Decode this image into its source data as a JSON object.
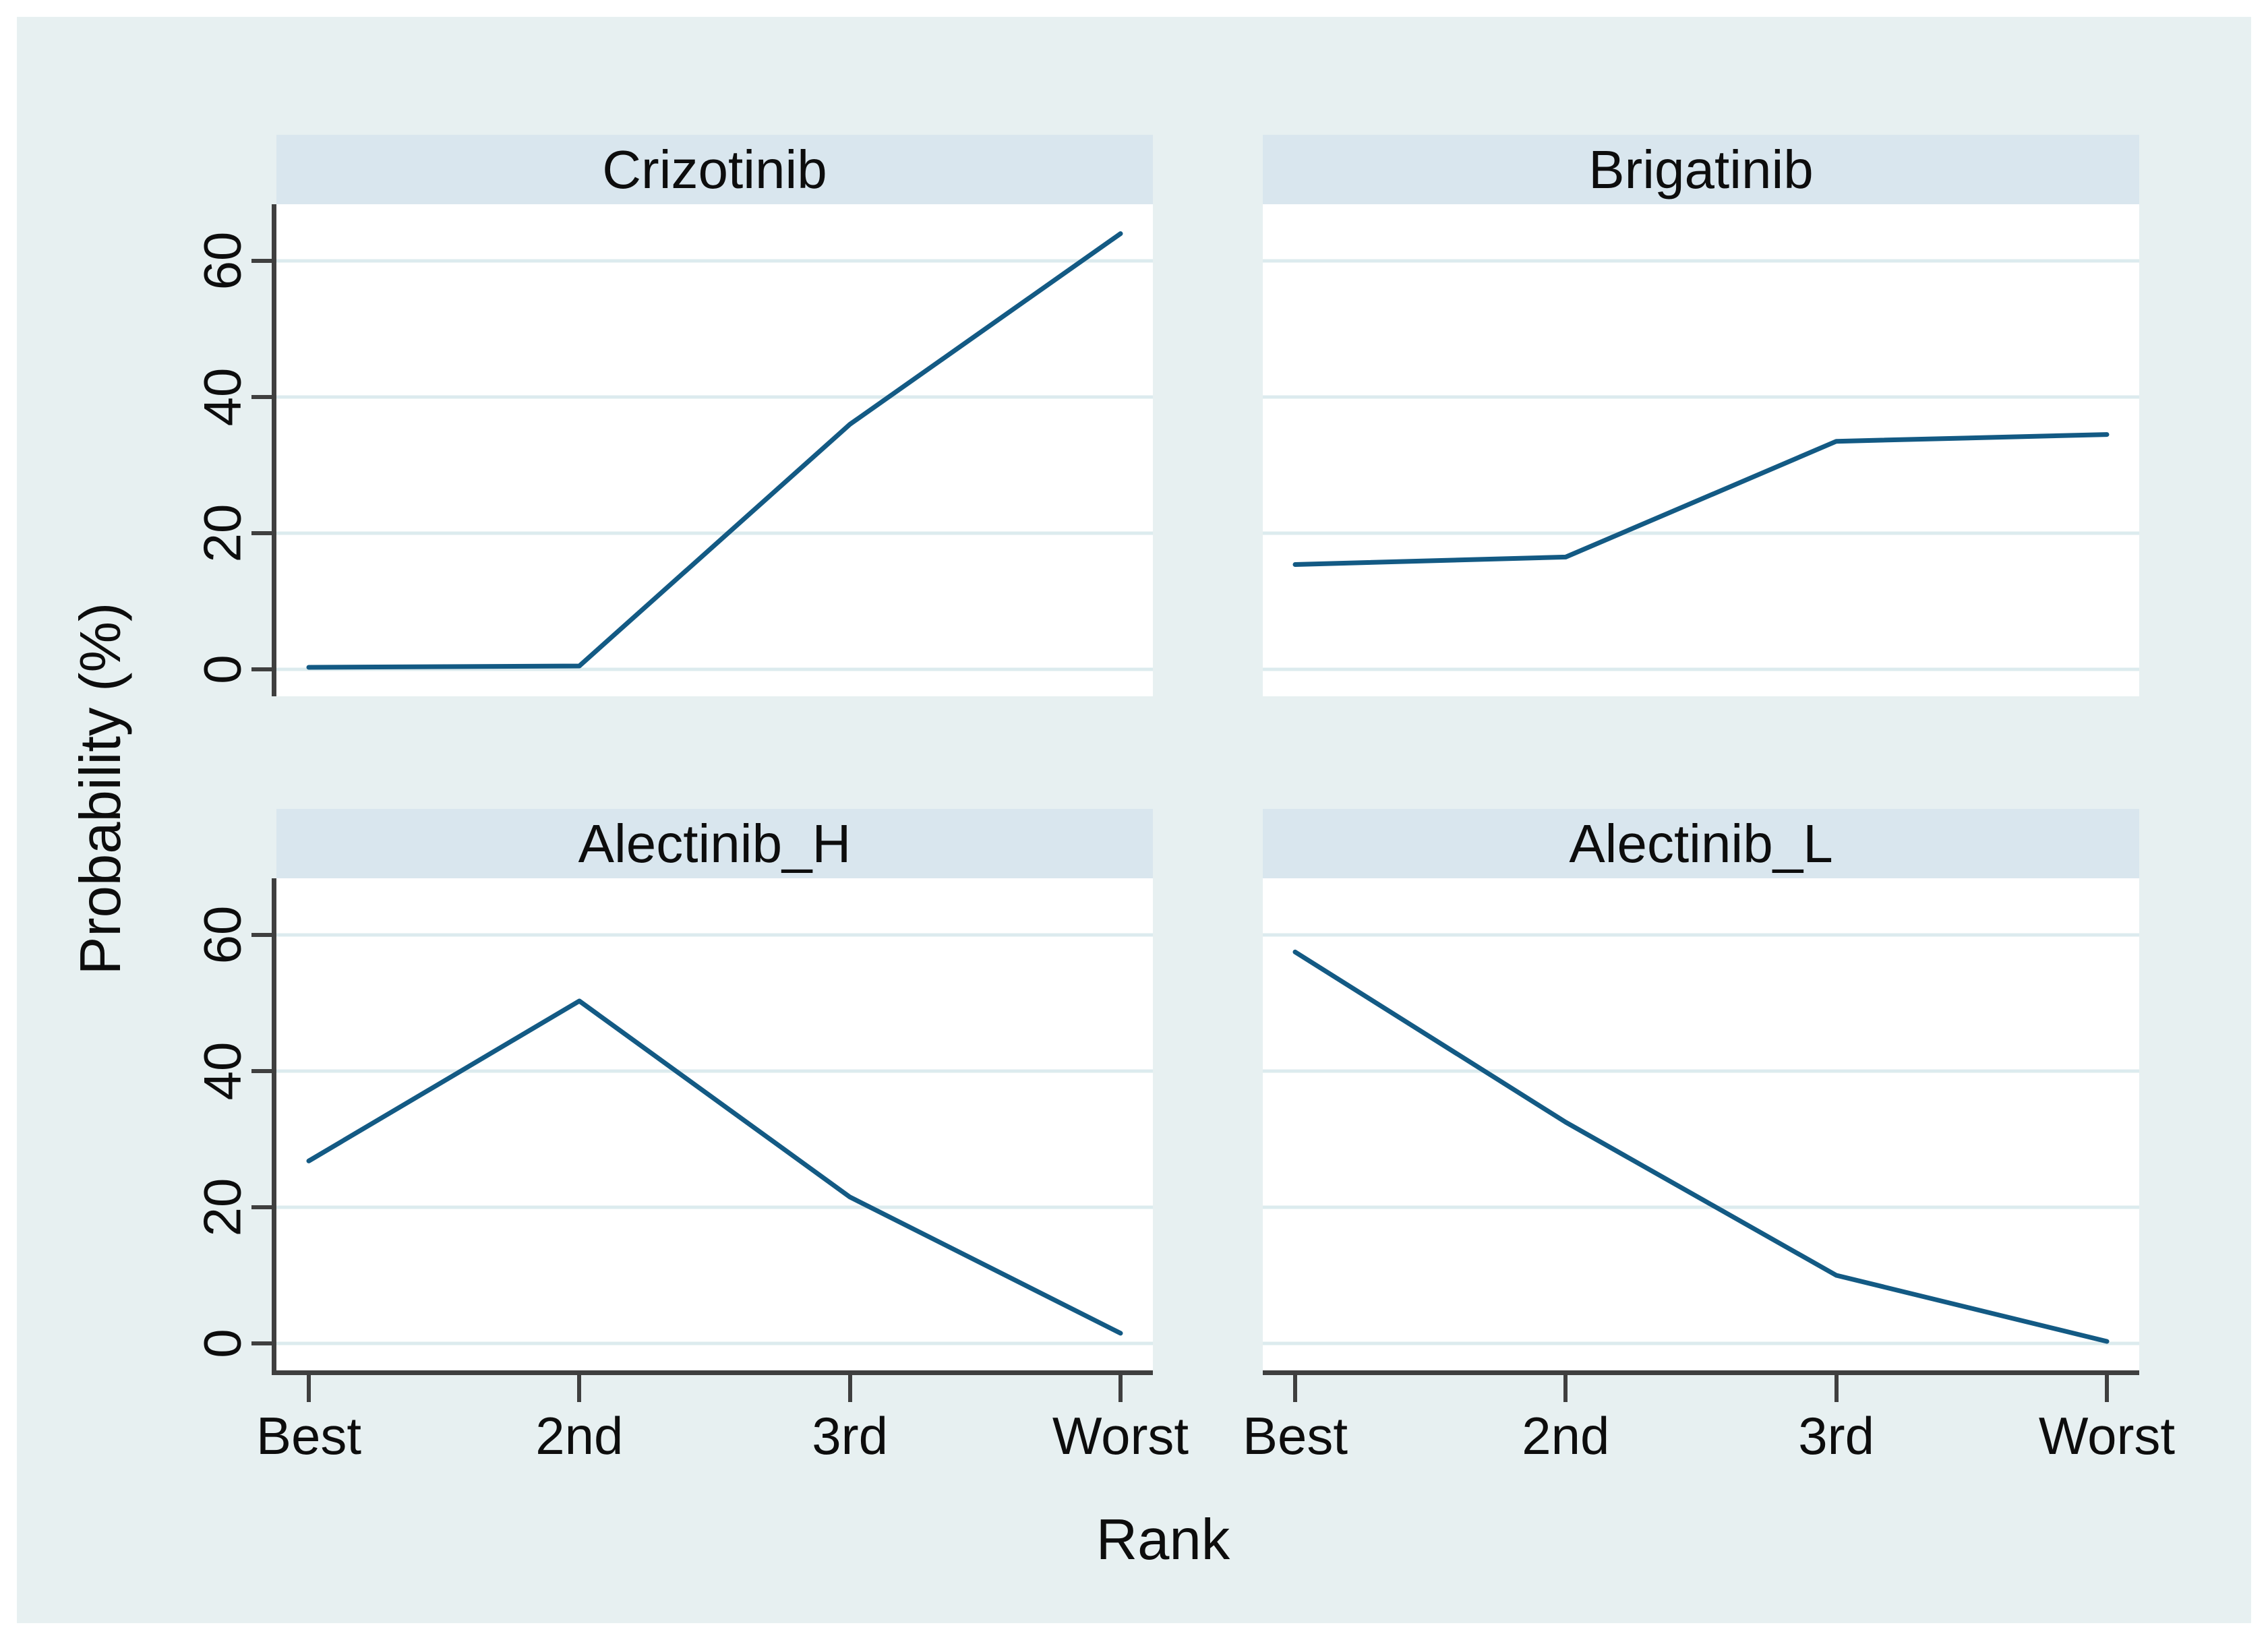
{
  "figure": {
    "ylabel": "Probability (%)",
    "xlabel": "Rank",
    "x_tick_labels": [
      "Best",
      "2nd",
      "3rd",
      "Worst"
    ],
    "y_tick_labels": [
      "0",
      "20",
      "40",
      "60"
    ],
    "colors": {
      "page_background": "#ffffff",
      "canvas_background": "#e7f0f1",
      "panel_title_background": "#d9e6ee",
      "plot_background": "#ffffff",
      "gridline": "#dcebee",
      "axis": "#3f3f3f",
      "text": "#0d0d0d"
    }
  },
  "chart_data": {
    "type": "line",
    "layout": "2x2 small multiples (by-panel rank plot)",
    "categories": [
      "Best",
      "2nd",
      "3rd",
      "Worst"
    ],
    "xlabel": "Rank",
    "ylabel": "Probability (%)",
    "ylim": [
      -4,
      68
    ],
    "y_ticks": [
      0,
      20,
      40,
      60
    ],
    "grid": "horizontal gridlines at y ticks",
    "legend": "none",
    "line_color": "#135a84",
    "series": [
      {
        "name": "Crizotinib",
        "panel": "top-left",
        "values": [
          0.3,
          0.5,
          36,
          64
        ]
      },
      {
        "name": "Brigatinib",
        "panel": "top-right",
        "values": [
          15.4,
          16.5,
          33.5,
          34.5
        ]
      },
      {
        "name": "Alectinib_H",
        "panel": "bottom-left",
        "values": [
          26.8,
          50.3,
          21.5,
          1.5
        ]
      },
      {
        "name": "Alectinib_L",
        "panel": "bottom-right",
        "values": [
          57.5,
          32.5,
          10,
          0.3
        ]
      }
    ]
  }
}
